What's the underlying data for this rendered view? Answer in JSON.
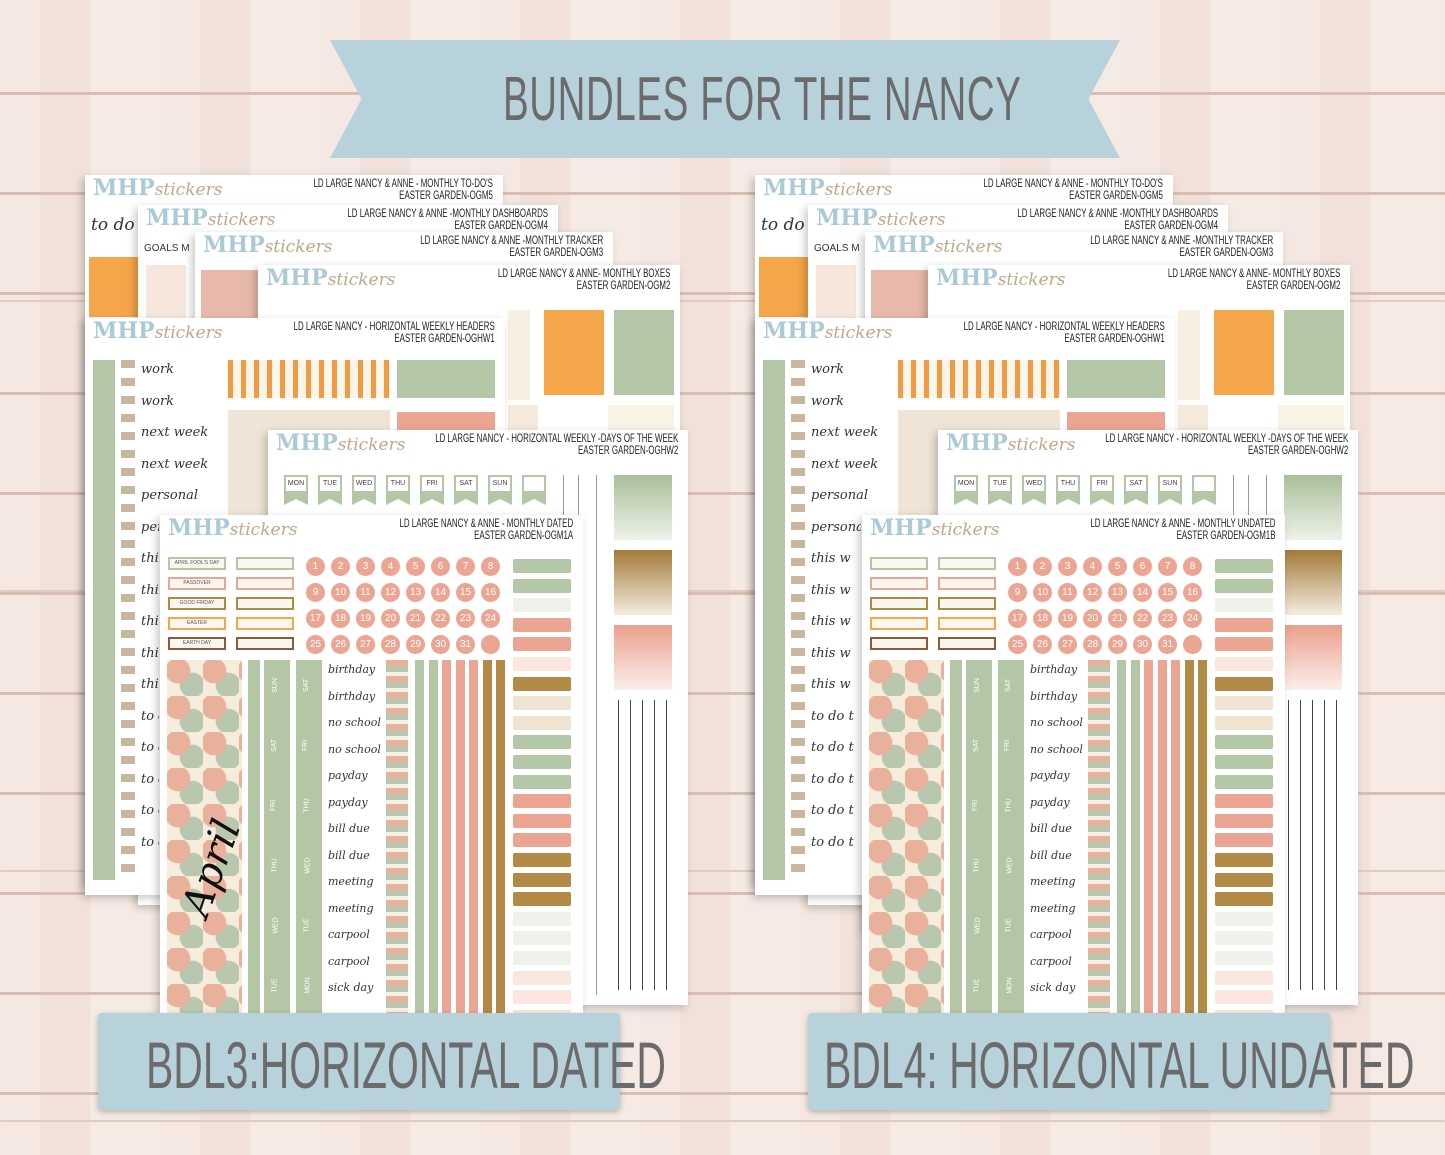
{
  "banner": {
    "title": "BUNDLES FOR THE NANCY"
  },
  "logo": {
    "brand": "MHP",
    "script": "stickers"
  },
  "bundles": [
    {
      "label": "BDL3:HORIZONTAL DATED",
      "variant": "dated"
    },
    {
      "label": "BDL4: HORIZONTAL UNDATED",
      "variant": "undated"
    }
  ],
  "sheets": [
    {
      "id": "todos",
      "line1": "LD LARGE NANCY & ANNE - MONTHLY TO-DO'S",
      "line2": "EASTER GARDEN-OGM5",
      "peek": "to do"
    },
    {
      "id": "dashboards",
      "line1": "LD LARGE NANCY & ANNE -MONTHLY DASHBOARDS",
      "line2": "EASTER GARDEN-OGM4",
      "peek": "GOALS M"
    },
    {
      "id": "tracker",
      "line1": "LD LARGE NANCY & ANNE -MONTHLY TRACKER",
      "line2": "EASTER GARDEN-OGM3"
    },
    {
      "id": "boxes",
      "line1": "LD LARGE NANCY & ANNE- MONTHLY BOXES",
      "line2": "EASTER GARDEN-OGM2"
    },
    {
      "id": "headers",
      "line1": "LD LARGE NANCY - HORIZONTAL WEEKLY HEADERS",
      "line2": "EASTER GARDEN-OGHW1",
      "words": [
        "work",
        "work",
        "next week",
        "next week",
        "personal",
        "personal",
        "this w",
        "this w",
        "this w",
        "this w",
        "this w",
        "to do t",
        "to do t",
        "to do t",
        "to do t",
        "to do t"
      ]
    },
    {
      "id": "days",
      "line1": "LD LARGE NANCY - HORIZONTAL WEEKLY -DAYS OF THE WEEK",
      "line2": "EASTER GARDEN-OGHW2",
      "days": [
        "MON",
        "TUE",
        "WED",
        "THU",
        "FRI",
        "SAT",
        "SUN",
        ""
      ]
    },
    {
      "id": "monthly",
      "line1_dated": "LD LARGE NANCY & ANNE - MONTHLY DATED",
      "line2_dated": "EASTER GARDEN-OGM1A",
      "line1_undated": "LD LARGE NANCY & ANNE - MONTHLY UNDATED",
      "line2_undated": "EASTER GARDEN-OGM1B",
      "holidays": [
        "APRIL FOOL'S DAY",
        "PASSOVER",
        "GOOD FRIDAY",
        "EASTER",
        "EARTH DAY"
      ],
      "month_script": "April",
      "strip1": [
        "SUN",
        "SAT",
        "FRI",
        "THU",
        "WED",
        "TUE"
      ],
      "strip2": [
        "SAT",
        "FRI",
        "THU",
        "WED",
        "TUE",
        "MON"
      ],
      "words": [
        "birthday",
        "birthday",
        "no school",
        "no school",
        "payday",
        "payday",
        "bill due",
        "bill due",
        "meeting",
        "meeting",
        "carpool",
        "carpool",
        "sick day"
      ],
      "numbers": [
        "1",
        "2",
        "3",
        "4",
        "5",
        "6",
        "7",
        "8",
        "9",
        "10",
        "11",
        "12",
        "13",
        "14",
        "15",
        "16",
        "17",
        "18",
        "19",
        "20",
        "21",
        "22",
        "23",
        "24",
        "25",
        "26",
        "27",
        "28",
        "29",
        "30",
        "31",
        ""
      ]
    }
  ],
  "colors": {
    "sage": "#b3c6a5",
    "peach": "#eba592",
    "gold": "#b38a45",
    "orange": "#f5a54a",
    "brown": "#8a5a3a",
    "sky": "#b7d2db"
  }
}
